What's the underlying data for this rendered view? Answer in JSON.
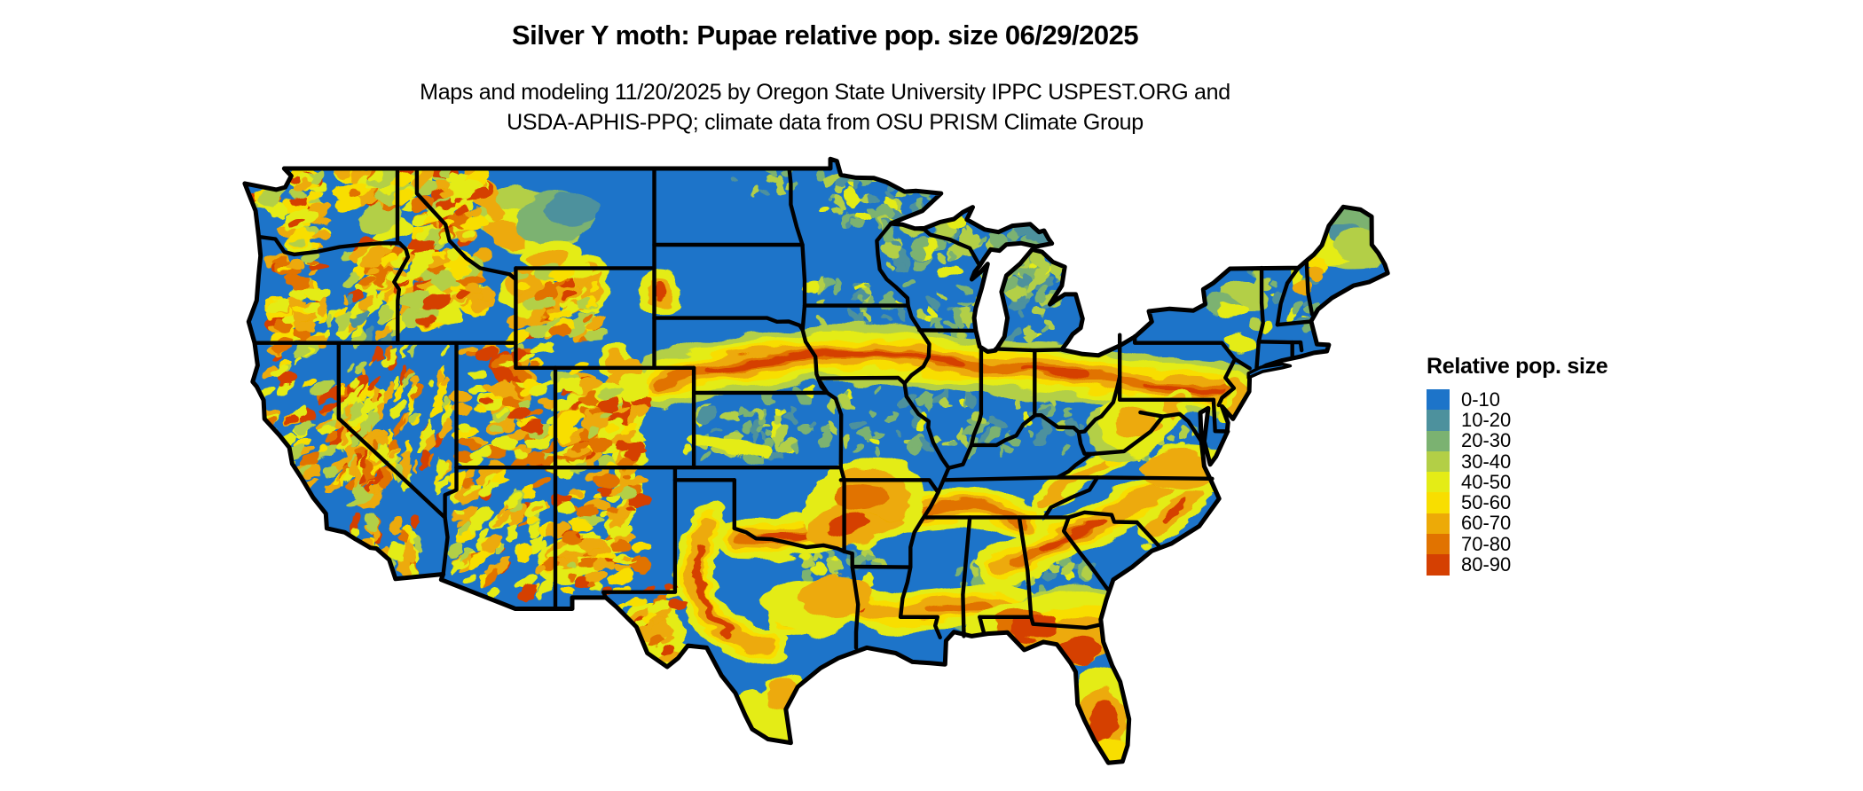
{
  "title": "Silver Y moth: Pupae relative pop. size 06/29/2025",
  "subtitle": {
    "line1": "Maps and modeling 11/20/2025 by Oregon State University IPPC USPEST.ORG and",
    "line2": "USDA-APHIS-PPQ; climate data from OSU PRISM Climate Group"
  },
  "legend": {
    "title": "Relative pop. size",
    "items": [
      {
        "label": "0-10",
        "color": "#1d74c9"
      },
      {
        "label": "10-20",
        "color": "#4d919d"
      },
      {
        "label": "20-30",
        "color": "#7bb271"
      },
      {
        "label": "30-40",
        "color": "#b3cf46"
      },
      {
        "label": "40-50",
        "color": "#e4ec16"
      },
      {
        "label": "50-60",
        "color": "#f8de00"
      },
      {
        "label": "60-70",
        "color": "#edaa07"
      },
      {
        "label": "70-80",
        "color": "#e17300"
      },
      {
        "label": "80-90",
        "color": "#d54002"
      }
    ]
  },
  "map": {
    "region": "Continental United States with state boundaries",
    "base_color": "#1d74c9",
    "state_border_color": "#000000",
    "background_color": "#ffffff"
  }
}
